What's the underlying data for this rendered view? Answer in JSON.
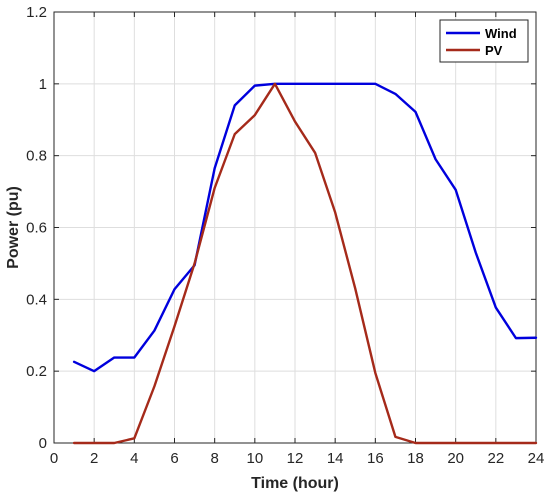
{
  "chart_data": {
    "type": "line",
    "title": "",
    "xlabel": "Time (hour)",
    "ylabel": "Power (pu)",
    "xlim": [
      0,
      24
    ],
    "ylim": [
      0,
      1.2
    ],
    "xticks": [
      0,
      2,
      4,
      6,
      8,
      10,
      12,
      14,
      16,
      18,
      20,
      22,
      24
    ],
    "yticks": [
      0,
      0.2,
      0.4,
      0.6,
      0.8,
      1,
      1.2
    ],
    "xtick_labels": [
      "0",
      "2",
      "4",
      "6",
      "8",
      "10",
      "12",
      "14",
      "16",
      "18",
      "20",
      "22",
      "24"
    ],
    "ytick_labels": [
      "0",
      "0.2",
      "0.4",
      "0.6",
      "0.8",
      "1",
      "1.2"
    ],
    "grid": true,
    "legend_position": "top-right",
    "x": [
      1,
      2,
      3,
      4,
      5,
      6,
      7,
      8,
      9,
      10,
      11,
      12,
      13,
      14,
      15,
      16,
      17,
      18,
      19,
      20,
      21,
      22,
      23,
      24
    ],
    "series": [
      {
        "name": "Wind",
        "color": "#0000dd",
        "values": [
          0.226,
          0.2,
          0.238,
          0.238,
          0.313,
          0.428,
          0.495,
          0.765,
          0.94,
          0.995,
          1.0,
          1.0,
          1.0,
          1.0,
          1.0,
          1.0,
          0.972,
          0.922,
          0.79,
          0.705,
          0.53,
          0.377,
          0.292,
          0.293
        ]
      },
      {
        "name": "PV",
        "color": "#a52a1a",
        "values": [
          0.0,
          0.0,
          0.0,
          0.013,
          0.158,
          0.325,
          0.5,
          0.71,
          0.86,
          0.913,
          1.0,
          0.895,
          0.808,
          0.642,
          0.43,
          0.195,
          0.017,
          0.0,
          0.0,
          0.0,
          0.0,
          0.0,
          0.0,
          0.0
        ]
      }
    ]
  }
}
